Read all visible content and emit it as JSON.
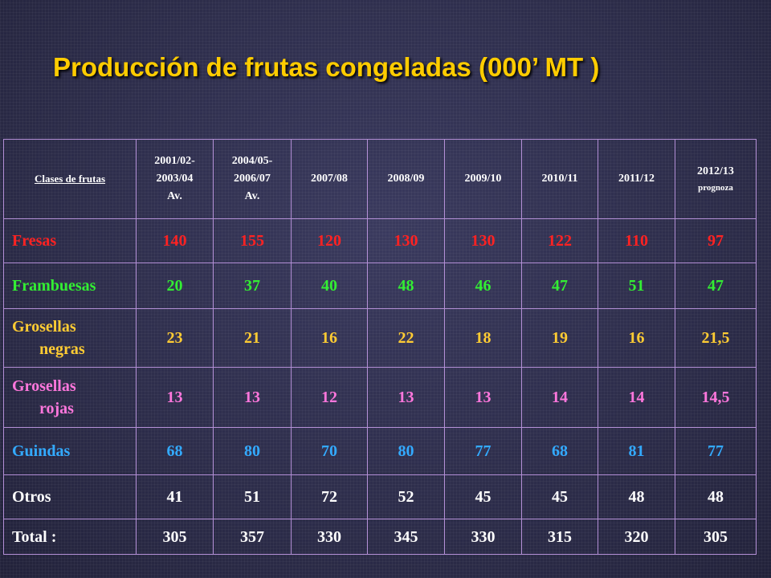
{
  "title": "Producción de frutas congeladas (000’ MT )",
  "colors": {
    "title": "#ffcc00",
    "background": "#2c2c4a",
    "grid": "#b38fd6",
    "fresas": "#ff2222",
    "frambuesas": "#33ee33",
    "grosellas_negras": "#ffcc33",
    "grosellas_rojas": "#ff77dd",
    "guindas": "#33aaff",
    "otros": "#ffffff",
    "total": "#ffffff"
  },
  "chart_data": {
    "type": "table",
    "title": "Producción de frutas congeladas (000’ MT )",
    "corner_header": "Clases de frutas",
    "columns": [
      {
        "lines": [
          "2001/02-",
          "2003/04",
          "Av."
        ]
      },
      {
        "lines": [
          "2004/05-",
          "2006/07",
          "Av."
        ]
      },
      {
        "lines": [
          "2007/08"
        ]
      },
      {
        "lines": [
          "2008/09"
        ]
      },
      {
        "lines": [
          "2009/10"
        ]
      },
      {
        "lines": [
          "2010/11"
        ]
      },
      {
        "lines": [
          "2011/12"
        ]
      },
      {
        "lines": [
          "2012/13"
        ],
        "note": "prognoza"
      }
    ],
    "rows": [
      {
        "label": "Fresas",
        "values": [
          "140",
          "155",
          "120",
          "130",
          "130",
          "122",
          "110",
          "97"
        ]
      },
      {
        "label": "Frambuesas",
        "values": [
          "20",
          "37",
          "40",
          "48",
          "46",
          "47",
          "51",
          "47"
        ]
      },
      {
        "label": "Grosellas negras",
        "label_lines": [
          "Grosellas",
          "negras"
        ],
        "values": [
          "23",
          "21",
          "16",
          "22",
          "18",
          "19",
          "16",
          "21,5"
        ]
      },
      {
        "label": "Grosellas rojas",
        "label_lines": [
          "Grosellas",
          "rojas"
        ],
        "values": [
          "13",
          "13",
          "12",
          "13",
          "13",
          "14",
          "14",
          "14,5"
        ]
      },
      {
        "label": "Guindas",
        "values": [
          "68",
          "80",
          "70",
          "80",
          "77",
          "68",
          "81",
          "77"
        ]
      },
      {
        "label": "Otros",
        "values": [
          "41",
          "51",
          "72",
          "52",
          "45",
          "45",
          "48",
          "48"
        ]
      },
      {
        "label": "Total :",
        "values": [
          "305",
          "357",
          "330",
          "345",
          "330",
          "315",
          "320",
          "305"
        ]
      }
    ]
  }
}
